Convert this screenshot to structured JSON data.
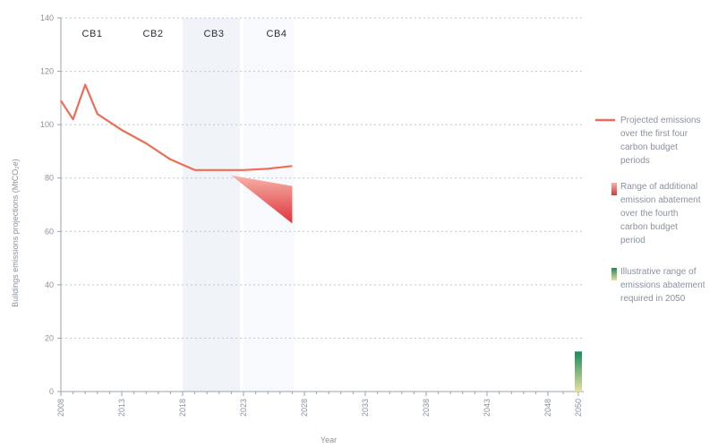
{
  "chart_data": {
    "type": "line",
    "xlabel": "Year",
    "ylabel": "Buildings emissions projections (MtCO₂e)",
    "xlim": [
      2008,
      2050
    ],
    "ylim": [
      0,
      140
    ],
    "x_ticks": [
      {
        "value": 2008,
        "label": "2008"
      },
      {
        "value": 2013,
        "label": "2013"
      },
      {
        "value": 2018,
        "label": "2018"
      },
      {
        "value": 2023,
        "label": "2023"
      },
      {
        "value": 2028,
        "label": "2028"
      },
      {
        "value": 2033,
        "label": "2033"
      },
      {
        "value": 2038,
        "label": "2038"
      },
      {
        "value": 2043,
        "label": "2043"
      },
      {
        "value": 2048,
        "label": "2048"
      },
      {
        "value": 2050,
        "label": "2050"
      }
    ],
    "y_ticks": [
      0,
      20,
      40,
      60,
      80,
      100,
      120,
      140
    ],
    "grid": "horizontal",
    "carbon_budget_periods": [
      {
        "label": "CB1",
        "start": 2008,
        "end": 2012
      },
      {
        "label": "CB2",
        "start": 2013,
        "end": 2017
      },
      {
        "label": "CB3",
        "start": 2018,
        "end": 2022
      },
      {
        "label": "CB4",
        "start": 2023,
        "end": 2027
      }
    ],
    "series": [
      {
        "name": "Projected emissions over the first four carbon budget periods",
        "color": "#ef6c57",
        "x": [
          2008,
          2009,
          2010,
          2011,
          2013,
          2015,
          2017,
          2019,
          2021,
          2023,
          2025,
          2027
        ],
        "y": [
          109,
          102,
          115,
          104,
          98,
          93,
          87,
          83,
          83,
          83,
          83.5,
          84.5
        ]
      }
    ],
    "range_band": {
      "name": "Range of additional emission abatement over the fourth carbon budget period",
      "color_top": "#f6b3a9",
      "color_bottom": "#e0323a",
      "x": [
        2022,
        2027
      ],
      "upper": [
        81,
        77
      ],
      "lower": [
        81,
        63
      ]
    },
    "bar_2050": {
      "name": "Illustrative range of emissions abatement required in 2050",
      "x": 2050,
      "low": 0,
      "high": 15,
      "color_top": "#1a8a5a",
      "color_bottom": "#e8e0a0"
    }
  },
  "legend": {
    "items": [
      {
        "lines": [
          "Projected emissions",
          "over the first four",
          "carbon budget",
          "periods"
        ],
        "type": "line",
        "color": "#ef6c57"
      },
      {
        "lines": [
          "Range of additional",
          "emission abatement",
          "over the fourth",
          "carbon budget",
          "period"
        ],
        "type": "swatch",
        "color_top": "#f6b3a9",
        "color_bottom": "#e0323a"
      },
      {
        "lines": [
          "Illustrative range of",
          "emissions abatement",
          "required in 2050"
        ],
        "type": "swatch",
        "color_top": "#1a8a5a",
        "color_bottom": "#e8e0a0"
      }
    ]
  }
}
